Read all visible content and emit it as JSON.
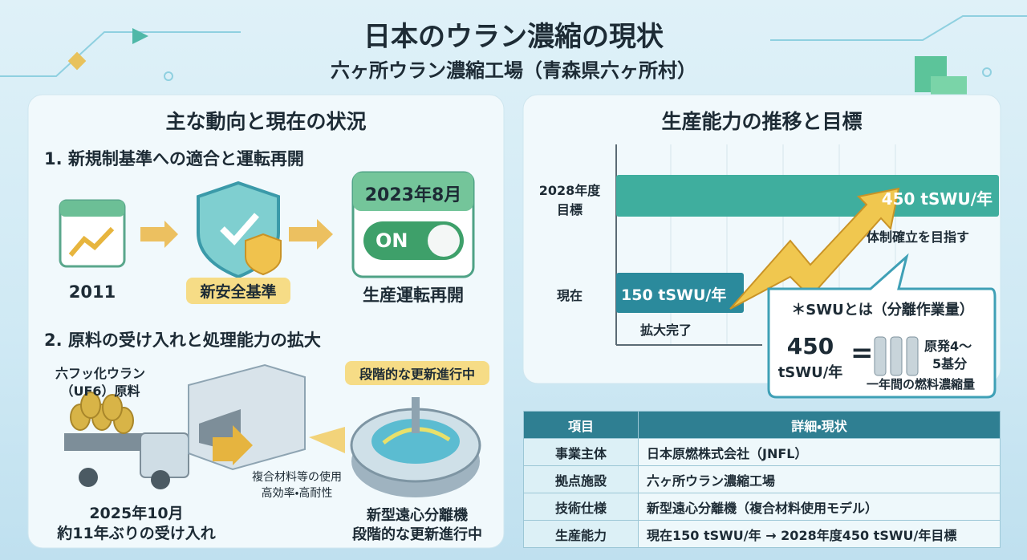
{
  "header": {
    "title": "日本のウラン濃縮の現状",
    "subtitle": "六ヶ所ウラン濃縮工場（青森県六ヶ所村）"
  },
  "trends": {
    "title": "主な動向と現在の状況",
    "section1": {
      "heading": "1. 新規制基準への適合と運転再開",
      "step1": "2011",
      "step2": "新安全基準",
      "step3": "生産運転再開",
      "calendar": "2023年8月",
      "switch": "ON"
    },
    "section2": {
      "heading": "2. 原料の受け入れと処理能力の拡大",
      "material_line1": "六フッ化ウラン",
      "material_line2": "（UF6）原料",
      "date": "2025年10月",
      "date_note": "約11年ぶりの受け入れ",
      "badge": "段階的な更新進行中",
      "feature_line1": "複合材料等の使用",
      "feature_line2": "高効率・高耐性",
      "machine": "新型遠心分離機",
      "machine_note": "段階的な更新進行中"
    }
  },
  "chart_data": {
    "type": "bar",
    "orientation": "horizontal",
    "title": "生産能力の推移と目標",
    "categories": [
      "2028年度\n目標",
      "現在"
    ],
    "values": [
      450,
      150
    ],
    "value_labels": [
      "450 tSWU/年",
      "150 tSWU/年"
    ],
    "colors": [
      "#3fae9e",
      "#2b8a9c"
    ],
    "xlim": [
      0,
      450
    ],
    "annotations": [
      "体制確立を目指す",
      "拡大完了"
    ]
  },
  "swu_note": {
    "title": "＊SWUとは（分離作業量）",
    "value": "450",
    "unit": "tSWU/年",
    "equals": "=",
    "desc_line1": "原発4～",
    "desc_line2": "5基分",
    "caption": "一年間の燃料濃縮量"
  },
  "table": {
    "header": [
      "項目",
      "詳細・現状"
    ],
    "rows": [
      [
        "事業主体",
        "日本原燃株式会社（JNFL）"
      ],
      [
        "拠点施設",
        "六ヶ所ウラン濃縮工場"
      ],
      [
        "技術仕様",
        "新型遠心分離機（複合材料使用モデル）"
      ],
      [
        "生産能力",
        "現在150 tSWU/年 → 2028年度450 tSWU/年目標"
      ]
    ]
  }
}
